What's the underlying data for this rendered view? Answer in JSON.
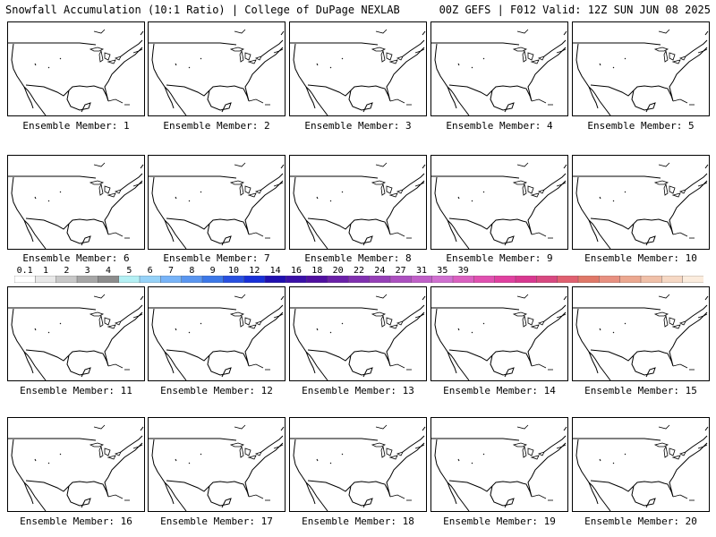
{
  "header": {
    "left_title": "Snowfall Accumulation (10:1 Ratio) | College of DuPage NEXLAB",
    "right_title": "00Z GEFS | F012 Valid: 12Z SUN JUN 08 2025"
  },
  "members": [
    "Ensemble Member: 1",
    "Ensemble Member: 2",
    "Ensemble Member: 3",
    "Ensemble Member: 4",
    "Ensemble Member: 5",
    "Ensemble Member: 6",
    "Ensemble Member: 7",
    "Ensemble Member: 8",
    "Ensemble Member: 9",
    "Ensemble Member: 10",
    "Ensemble Member: 11",
    "Ensemble Member: 12",
    "Ensemble Member: 13",
    "Ensemble Member: 14",
    "Ensemble Member: 15",
    "Ensemble Member: 16",
    "Ensemble Member: 17",
    "Ensemble Member: 18",
    "Ensemble Member: 19",
    "Ensemble Member: 20"
  ],
  "colorbar": {
    "colors": [
      "#ffffff",
      "#e8e8e8",
      "#c8c8c8",
      "#a6a6a6",
      "#8c8c8c",
      "#b4f0f4",
      "#96d2f8",
      "#78b4f8",
      "#5a96f0",
      "#3c78e8",
      "#2850e0",
      "#1830d8",
      "#2010b0",
      "#3a10a8",
      "#5010a0",
      "#6a20a8",
      "#8030b0",
      "#9640b8",
      "#ac50c0",
      "#c060c8",
      "#d070d0",
      "#da60c0",
      "#e050b0",
      "#e040a0",
      "#d83890",
      "#d84880",
      "#e06070",
      "#e07868",
      "#e89080",
      "#eca890",
      "#f0c0a8",
      "#f6d8c4",
      "#fbecdd"
    ],
    "labels": [
      {
        "text": "0.1",
        "index": 1
      },
      {
        "text": "1",
        "index": 3
      },
      {
        "text": "2",
        "index": 5
      },
      {
        "text": "3",
        "index": 7
      },
      {
        "text": "4",
        "index": 9
      },
      {
        "text": "5",
        "index": 11
      },
      {
        "text": "6",
        "index": 13
      },
      {
        "text": "7",
        "index": 15
      },
      {
        "text": "8",
        "index": 17
      },
      {
        "text": "9",
        "index": 19
      },
      {
        "text": "10",
        "index": 21
      },
      {
        "text": "12",
        "index": 23
      },
      {
        "text": "14",
        "index": 25
      },
      {
        "text": "16",
        "index": 27
      },
      {
        "text": "18",
        "index": 29
      },
      {
        "text": "20",
        "index": 31
      },
      {
        "text": "22",
        "index": 33
      },
      {
        "text": "24",
        "index": 35
      },
      {
        "text": "27",
        "index": 37
      },
      {
        "text": "31",
        "index": 39
      },
      {
        "text": "35",
        "index": 41
      },
      {
        "text": "39",
        "index": 43
      }
    ]
  }
}
